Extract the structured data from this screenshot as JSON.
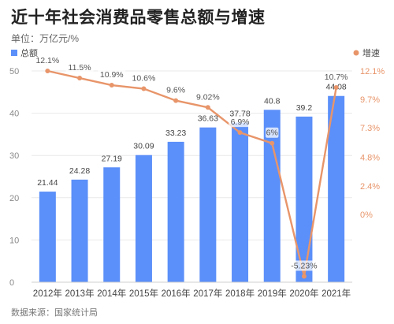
{
  "title": "近十年社会消费品零售总额与增速",
  "unit": "单位：万亿元/%",
  "source": "数据来源：国家统计局",
  "colors": {
    "bar": "#5b8ff9",
    "line": "#e8956a",
    "line_label": "#555555",
    "axis_text": "#8a8a8a",
    "grid": "#e9e9e9"
  },
  "chart_data": {
    "type": "bar",
    "categories": [
      "2012年",
      "2013年",
      "2014年",
      "2015年",
      "2016年",
      "2017年",
      "2018年",
      "2019年",
      "2020年",
      "2021年"
    ],
    "series": [
      {
        "name": "总额",
        "type": "bar",
        "axis": "left",
        "values": [
          21.44,
          24.28,
          27.19,
          30.09,
          33.23,
          36.63,
          37.78,
          40.8,
          39.2,
          44.08
        ],
        "labels": [
          "21.44",
          "24.28",
          "27.19",
          "30.09",
          "33.23",
          "36.63",
          "37.78",
          "40.8",
          "39.2",
          "44.08"
        ]
      },
      {
        "name": "增速",
        "type": "line",
        "axis": "right",
        "values": [
          12.1,
          11.5,
          10.9,
          10.6,
          9.6,
          9.02,
          6.9,
          6.0,
          -5.23,
          10.7
        ],
        "labels": [
          "12.1%",
          "11.5%",
          "10.9%",
          "10.6%",
          "9.6%",
          "9.02%",
          "6.9%",
          "6%",
          "-5.23%",
          "10.7%"
        ]
      }
    ],
    "left_axis": {
      "ylim": [
        0,
        50
      ],
      "ticks": [
        "0",
        "10",
        "20",
        "30",
        "40",
        "50"
      ]
    },
    "right_axis": {
      "ylim": [
        -5.73,
        12.1
      ],
      "tick_values": [
        0,
        2.4,
        4.8,
        7.3,
        9.7,
        12.1
      ],
      "ticks": [
        "0%",
        "2.4%",
        "4.8%",
        "7.3%",
        "9.7%",
        "12.1%"
      ]
    },
    "legend": {
      "position": "top",
      "bar_label": "总额",
      "line_label": "增速"
    },
    "grid": true
  }
}
